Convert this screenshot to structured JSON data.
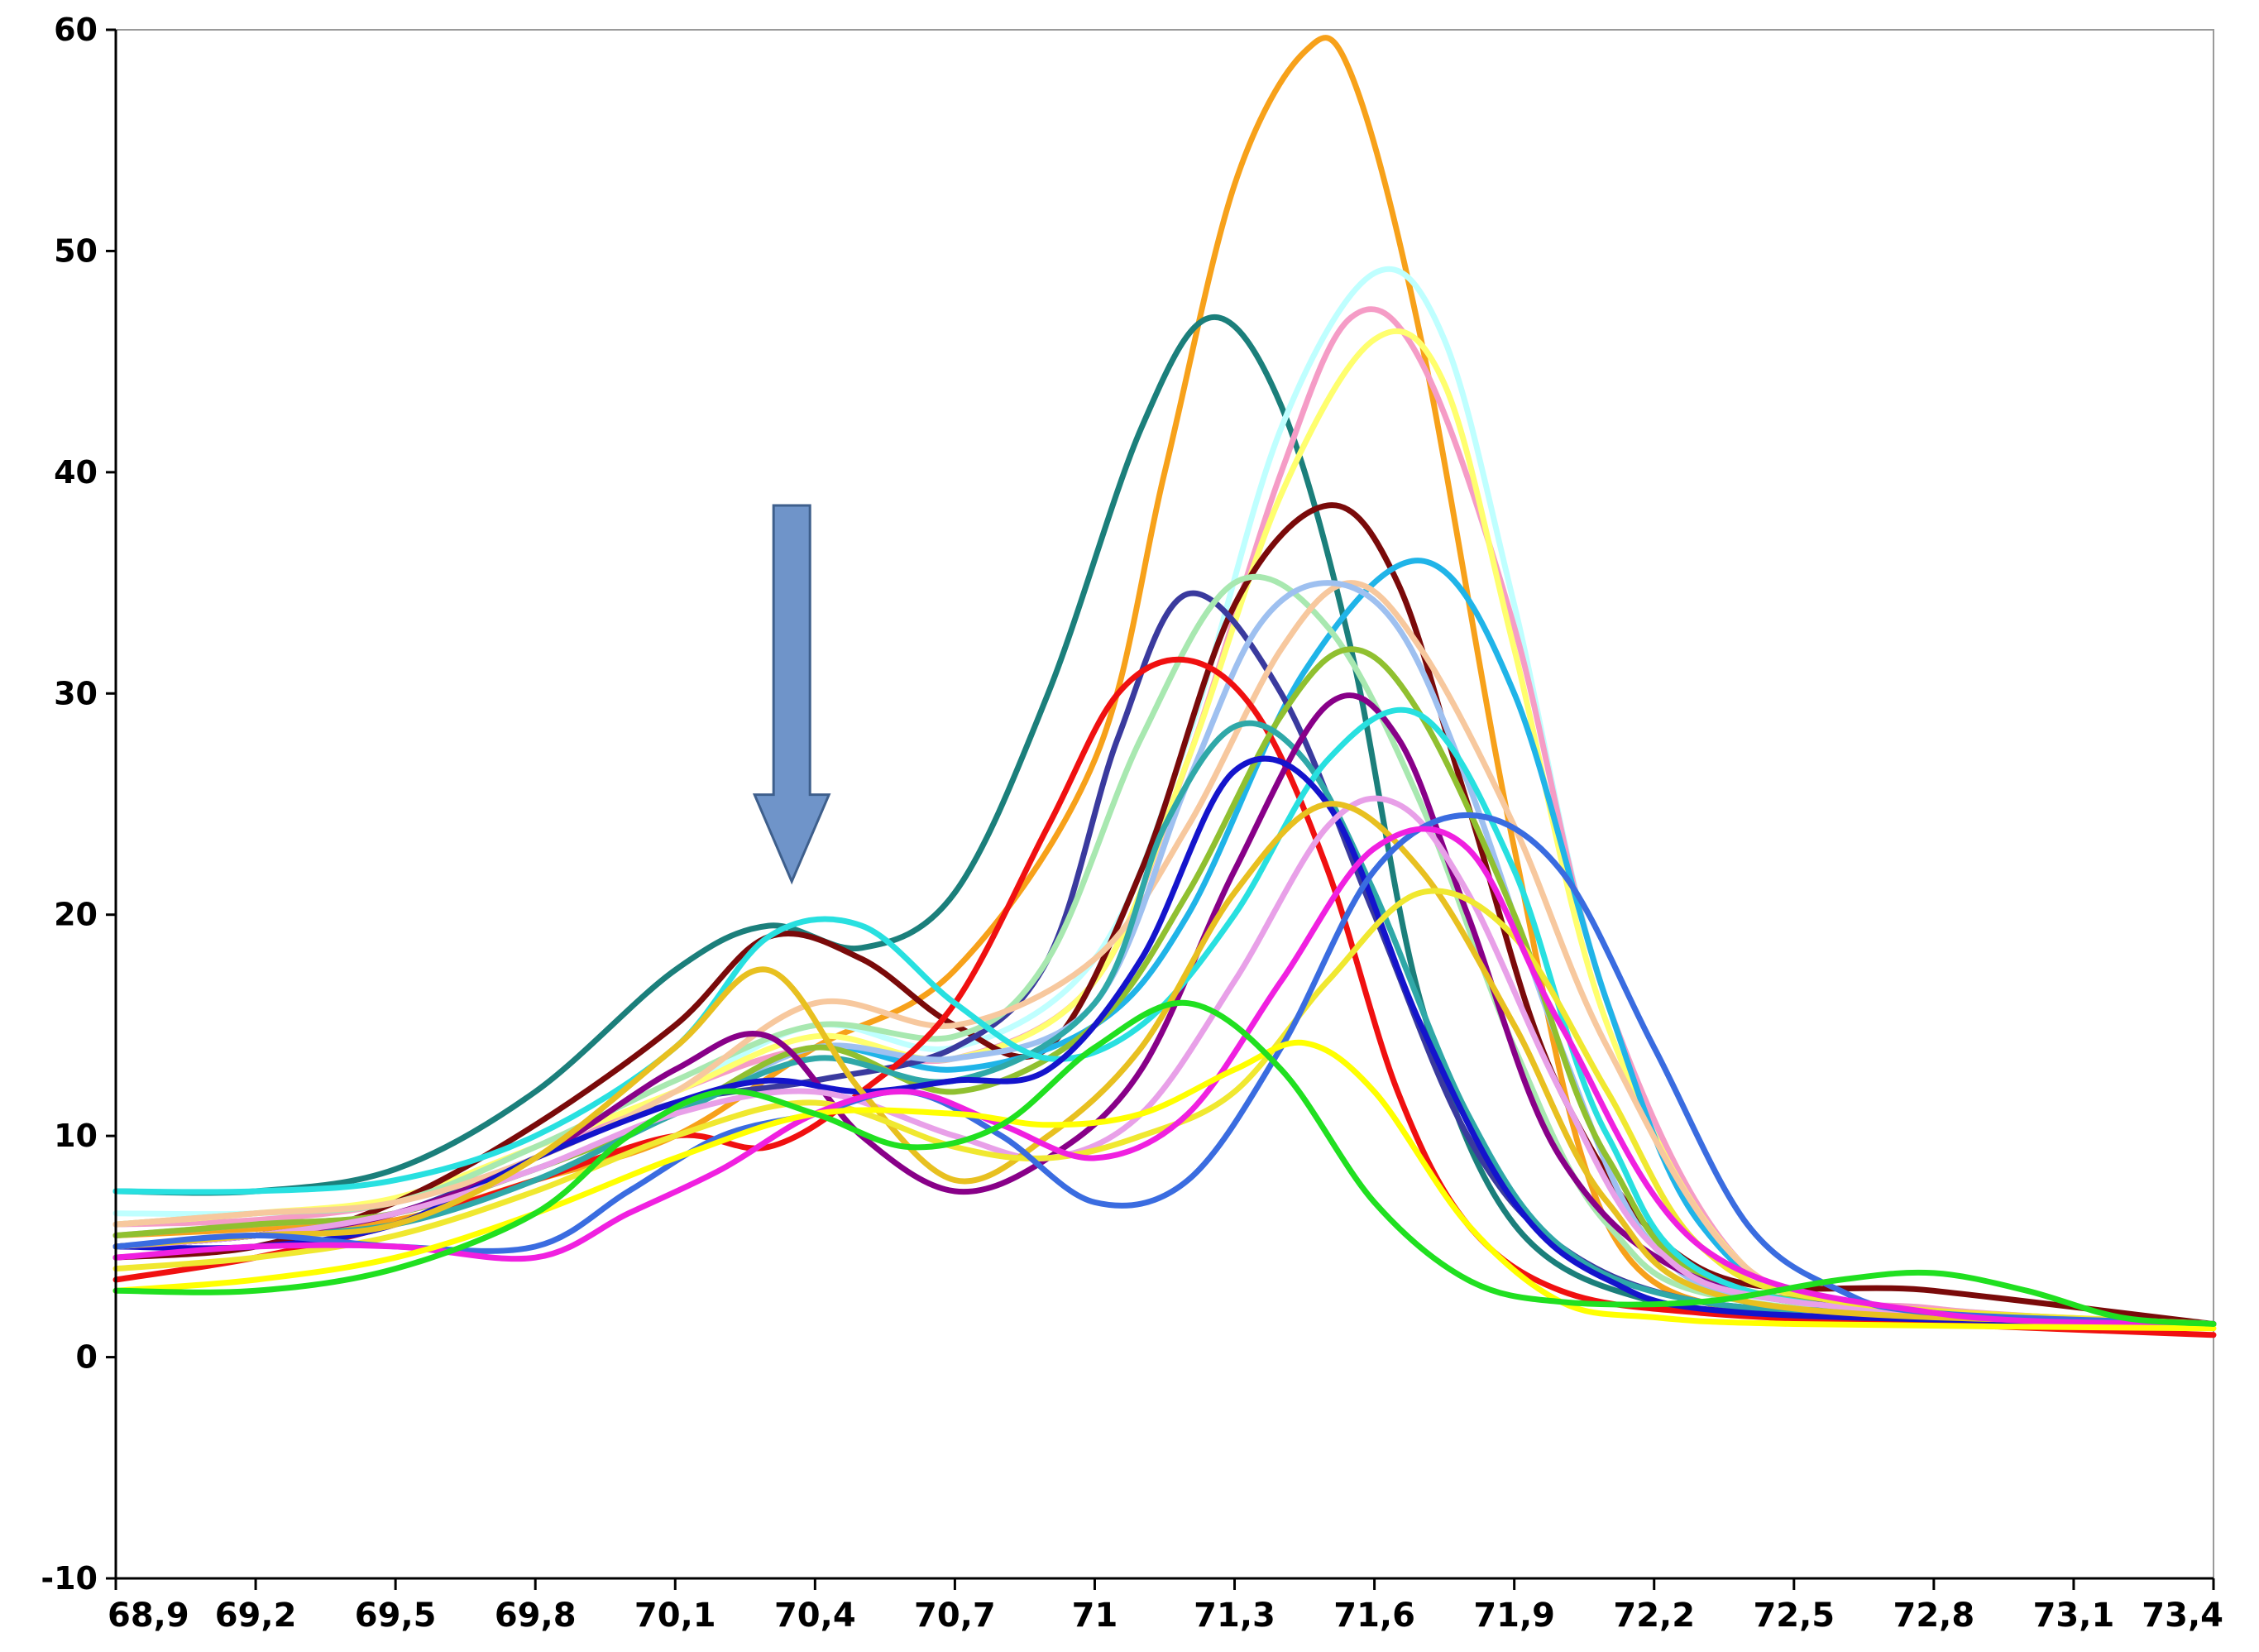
{
  "chart_data": {
    "type": "line",
    "title": "",
    "xlabel": "",
    "ylabel": "",
    "xlim": [
      68.9,
      73.4
    ],
    "ylim": [
      -10,
      60
    ],
    "x_ticks": [
      68.9,
      69.2,
      69.5,
      69.8,
      70.1,
      70.4,
      70.7,
      71.0,
      71.3,
      71.6,
      71.9,
      72.2,
      72.5,
      72.8,
      73.1,
      73.4
    ],
    "x_tick_labels": [
      "68,9",
      "69,2",
      "69,5",
      "69,8",
      "70,1",
      "70,4",
      "70,7",
      "71",
      "71,3",
      "71,6",
      "71,9",
      "72,2",
      "72,5",
      "72,8",
      "73,1",
      "73,4"
    ],
    "y_ticks": [
      -10,
      0,
      10,
      20,
      30,
      40,
      50,
      60
    ],
    "y_tick_labels": [
      "-10",
      "0",
      "10",
      "20",
      "30",
      "40",
      "50",
      "60"
    ],
    "grid": false,
    "legend": "none",
    "annotation": {
      "type": "arrow",
      "direction": "down",
      "x": 70.35,
      "y_top": 38.5,
      "y_tip": 21.5,
      "color": "#6F94C9"
    },
    "series": [
      {
        "color": "#F7A11A",
        "x": [
          68.9,
          69.2,
          69.5,
          69.8,
          70.1,
          70.4,
          70.7,
          71.0,
          71.15,
          71.3,
          71.45,
          71.55,
          71.7,
          71.9,
          72.1,
          72.4,
          72.8,
          73.4
        ],
        "y": [
          5.5,
          5.8,
          6.2,
          8,
          10,
          14,
          17.5,
          27,
          40,
          53,
          59,
          58,
          46,
          23,
          6,
          2,
          1.8,
          1.5
        ]
      },
      {
        "color": "#1B7F7B",
        "x": [
          68.9,
          69.2,
          69.5,
          69.8,
          70.1,
          70.3,
          70.5,
          70.7,
          70.9,
          71.1,
          71.25,
          71.4,
          71.55,
          71.7,
          71.9,
          72.2,
          72.6,
          73.4
        ],
        "y": [
          7.5,
          7.5,
          8.5,
          12,
          17.5,
          19.5,
          18.5,
          21,
          30,
          42,
          47,
          43,
          32,
          16,
          6,
          2.5,
          1.8,
          1.5
        ]
      },
      {
        "color": "#BFFFFF",
        "x": [
          68.9,
          69.2,
          69.5,
          69.8,
          70.1,
          70.4,
          70.7,
          71.0,
          71.2,
          71.4,
          71.6,
          71.75,
          71.9,
          72.1,
          72.4,
          72.8,
          73.4
        ],
        "y": [
          6.5,
          6.5,
          7,
          9,
          12,
          15,
          14,
          18,
          28,
          42,
          49,
          46,
          34,
          16,
          4,
          2.2,
          1.5
        ]
      },
      {
        "color": "#F59CC6",
        "x": [
          68.9,
          69.2,
          69.5,
          69.8,
          70.1,
          70.4,
          70.7,
          71.0,
          71.2,
          71.4,
          71.55,
          71.7,
          71.9,
          72.1,
          72.4,
          72.8,
          73.4
        ],
        "y": [
          6,
          6.2,
          7,
          9,
          12,
          14,
          13.5,
          17,
          27,
          40,
          47,
          45,
          33,
          16,
          4,
          2.2,
          1.5
        ]
      },
      {
        "color": "#FFFF6E",
        "x": [
          68.9,
          69.2,
          69.5,
          69.8,
          70.1,
          70.4,
          70.7,
          71.0,
          71.2,
          71.4,
          71.6,
          71.75,
          71.9,
          72.1,
          72.4,
          72.8,
          73.4
        ],
        "y": [
          6,
          6.5,
          7.2,
          9.5,
          12,
          14.5,
          13.5,
          17,
          27,
          39,
          46,
          44,
          32,
          15,
          4,
          2,
          1.5
        ]
      },
      {
        "color": "#7A0A0A",
        "x": [
          68.9,
          69.2,
          69.5,
          69.8,
          70.1,
          70.3,
          70.5,
          70.7,
          70.9,
          71.1,
          71.3,
          71.5,
          71.65,
          71.8,
          72.0,
          72.3,
          72.8,
          73.4
        ],
        "y": [
          4.5,
          5,
          7,
          10.5,
          15,
          19,
          18,
          15,
          14,
          22,
          34,
          38.5,
          35,
          25,
          12,
          4,
          3,
          1.5
        ]
      },
      {
        "color": "#20B4E8",
        "x": [
          68.9,
          69.2,
          69.5,
          69.8,
          70.1,
          70.4,
          70.7,
          71.0,
          71.2,
          71.45,
          71.7,
          71.9,
          72.1,
          72.3,
          72.6,
          73.4
        ],
        "y": [
          5,
          5.5,
          6.5,
          8.5,
          11,
          14,
          13,
          15,
          20,
          31,
          36,
          30,
          16,
          6,
          2.5,
          1.5
        ]
      },
      {
        "color": "#3A3A9E",
        "x": [
          68.9,
          69.2,
          69.5,
          69.8,
          70.1,
          70.4,
          70.7,
          70.9,
          71.05,
          71.2,
          71.4,
          71.6,
          71.8,
          72.0,
          72.3,
          72.8,
          73.4
        ],
        "y": [
          5,
          5.5,
          6.5,
          9,
          11.5,
          12.5,
          14,
          18,
          28,
          34.5,
          30,
          20,
          10,
          5,
          2.5,
          2,
          1.5
        ]
      },
      {
        "color": "#A8E8B0",
        "x": [
          68.9,
          69.2,
          69.5,
          69.8,
          70.1,
          70.4,
          70.7,
          70.9,
          71.1,
          71.3,
          71.5,
          71.7,
          71.9,
          72.1,
          72.4,
          73.4
        ],
        "y": [
          6,
          6.5,
          7,
          9.5,
          12.5,
          15,
          14.5,
          18,
          28,
          35,
          33,
          25,
          14,
          6,
          2.5,
          1.5
        ]
      },
      {
        "color": "#F7C89E",
        "x": [
          68.9,
          69.2,
          69.5,
          69.8,
          70.1,
          70.4,
          70.7,
          71.0,
          71.2,
          71.4,
          71.55,
          71.7,
          71.9,
          72.1,
          72.4,
          72.8,
          73.4
        ],
        "y": [
          6,
          6.5,
          7,
          9,
          12,
          16,
          15,
          18,
          24,
          32,
          35,
          32,
          24,
          14,
          4,
          2,
          1.5
        ]
      },
      {
        "color": "#9EC0F0",
        "x": [
          68.9,
          69.2,
          69.5,
          69.8,
          70.1,
          70.4,
          70.7,
          71.0,
          71.2,
          71.35,
          71.5,
          71.65,
          71.8,
          72.0,
          72.2,
          72.5,
          73.4
        ],
        "y": [
          5.5,
          6,
          6.5,
          8.5,
          11,
          14,
          13.5,
          16,
          26,
          33,
          35,
          33,
          26,
          14,
          5,
          2.5,
          1.5
        ]
      },
      {
        "color": "#F01010",
        "x": [
          68.9,
          69.2,
          69.5,
          69.8,
          70.1,
          70.3,
          70.5,
          70.7,
          70.9,
          71.05,
          71.2,
          71.35,
          71.5,
          71.65,
          71.8,
          72.0,
          72.3,
          72.8,
          73.4
        ],
        "y": [
          3.5,
          4.5,
          6,
          8,
          10,
          9.5,
          12,
          16,
          24,
          30,
          31.5,
          29,
          22,
          12,
          6,
          3,
          2,
          1.5,
          1
        ]
      },
      {
        "color": "#90C030",
        "x": [
          68.9,
          69.2,
          69.5,
          69.8,
          70.1,
          70.4,
          70.7,
          71.0,
          71.2,
          71.4,
          71.55,
          71.7,
          71.9,
          72.1,
          72.4,
          73.4
        ],
        "y": [
          5.5,
          6,
          6.5,
          8.5,
          11,
          14,
          12,
          15,
          21,
          29,
          32,
          29,
          20,
          9,
          3,
          1.5
        ]
      },
      {
        "color": "#2FA8A8",
        "x": [
          68.9,
          69.2,
          69.5,
          69.8,
          70.1,
          70.4,
          70.7,
          71.0,
          71.15,
          71.3,
          71.45,
          71.6,
          71.8,
          72.0,
          72.3,
          72.8,
          73.4
        ],
        "y": [
          5,
          5.5,
          6,
          8,
          11,
          13.5,
          12.5,
          16,
          24,
          28.5,
          27,
          21,
          11,
          5,
          2.5,
          2,
          1.5
        ]
      },
      {
        "color": "#880088",
        "x": [
          68.9,
          69.2,
          69.5,
          69.8,
          70.1,
          70.3,
          70.5,
          70.7,
          70.9,
          71.1,
          71.3,
          71.5,
          71.65,
          71.8,
          72.0,
          72.3,
          72.8,
          73.4
        ],
        "y": [
          5,
          5.5,
          6.5,
          9,
          13,
          14.5,
          10,
          7.5,
          9,
          13,
          22,
          29.5,
          28,
          20,
          9,
          3.5,
          2,
          1.5
        ]
      },
      {
        "color": "#28E0E0",
        "x": [
          68.9,
          69.2,
          69.5,
          69.8,
          70.1,
          70.3,
          70.5,
          70.7,
          70.9,
          71.1,
          71.3,
          71.5,
          71.7,
          71.9,
          72.1,
          72.4,
          73.4
        ],
        "y": [
          7.5,
          7.5,
          8,
          10,
          14,
          19,
          19.5,
          16,
          13.5,
          15,
          20,
          27,
          29,
          22,
          10,
          3,
          1.5
        ]
      },
      {
        "color": "#1414CC",
        "x": [
          68.9,
          69.2,
          69.5,
          69.8,
          70.1,
          70.3,
          70.5,
          70.7,
          70.9,
          71.1,
          71.3,
          71.5,
          71.7,
          71.9,
          72.1,
          72.4,
          73.4
        ],
        "y": [
          5,
          5,
          6,
          9,
          11.5,
          12.5,
          12,
          12.5,
          13,
          18,
          26.5,
          25,
          15,
          7,
          3.5,
          2,
          1.5
        ]
      },
      {
        "color": "#E8A0E8",
        "x": [
          68.9,
          69.2,
          69.5,
          69.8,
          70.1,
          70.4,
          70.7,
          70.9,
          71.1,
          71.3,
          71.5,
          71.65,
          71.8,
          72.0,
          72.2,
          72.5,
          73.4
        ],
        "y": [
          5,
          5.5,
          6.5,
          8.5,
          11,
          12,
          10,
          9,
          11,
          17,
          24,
          25,
          21,
          12,
          5,
          2.5,
          1.5
        ]
      },
      {
        "color": "#E8C020",
        "x": [
          68.9,
          69.2,
          69.5,
          69.8,
          70.1,
          70.3,
          70.5,
          70.7,
          70.9,
          71.1,
          71.3,
          71.5,
          71.7,
          71.9,
          72.1,
          72.4,
          73.4
        ],
        "y": [
          5,
          5.5,
          6,
          9,
          14,
          17.5,
          12,
          8,
          10,
          14,
          21,
          25,
          22,
          15,
          7,
          2.5,
          1.5
        ]
      },
      {
        "color": "#F0E830",
        "x": [
          68.9,
          69.2,
          69.5,
          69.8,
          70.1,
          70.4,
          70.7,
          70.9,
          71.1,
          71.3,
          71.5,
          71.7,
          71.9,
          72.1,
          72.3,
          72.6,
          73.4
        ],
        "y": [
          4,
          4.5,
          5.5,
          7.5,
          10,
          11.5,
          9.5,
          9,
          10,
          12,
          17,
          21,
          19,
          12,
          5,
          2.5,
          1.5
        ]
      },
      {
        "color": "#3A6CE0",
        "x": [
          68.9,
          69.2,
          69.5,
          69.8,
          70.0,
          70.2,
          70.4,
          70.6,
          70.8,
          71.0,
          71.2,
          71.4,
          71.6,
          71.8,
          72.0,
          72.2,
          72.4,
          72.6,
          72.8,
          73.4
        ],
        "y": [
          5,
          5.5,
          5,
          5,
          7.5,
          10,
          11,
          12,
          10,
          7,
          8,
          14,
          22,
          24.5,
          22,
          14,
          6,
          3,
          2,
          1.5
        ]
      },
      {
        "color": "#F020E0",
        "x": [
          68.9,
          69.2,
          69.5,
          69.8,
          70.0,
          70.2,
          70.4,
          70.6,
          70.8,
          71.0,
          71.2,
          71.4,
          71.6,
          71.8,
          72.0,
          72.3,
          72.8,
          73.4
        ],
        "y": [
          4.5,
          5,
          5,
          4.5,
          6.5,
          8.5,
          11,
          12,
          10.5,
          9,
          11,
          17,
          23,
          23,
          15,
          5,
          2,
          1.5
        ]
      },
      {
        "color": "#FFFF00",
        "x": [
          68.9,
          69.2,
          69.5,
          69.8,
          70.1,
          70.4,
          70.7,
          70.9,
          71.1,
          71.3,
          71.45,
          71.6,
          71.8,
          72.0,
          72.2,
          72.5,
          73.4
        ],
        "y": [
          3,
          3.5,
          4.5,
          6.5,
          9,
          11,
          11,
          10.5,
          11,
          13,
          14.2,
          12,
          6,
          2.5,
          1.8,
          1.5,
          1.3
        ]
      },
      {
        "color": "#20E020",
        "x": [
          68.9,
          69.2,
          69.5,
          69.8,
          70.0,
          70.2,
          70.4,
          70.6,
          70.8,
          71.0,
          71.2,
          71.4,
          71.6,
          71.8,
          72.0,
          72.3,
          72.6,
          72.8,
          73.0,
          73.2,
          73.4
        ],
        "y": [
          3,
          3,
          4,
          6.5,
          10,
          12,
          11,
          9.5,
          10.5,
          14,
          16,
          13,
          7,
          3.5,
          2.5,
          2.5,
          3.5,
          3.8,
          3,
          1.8,
          1.5
        ]
      }
    ]
  }
}
